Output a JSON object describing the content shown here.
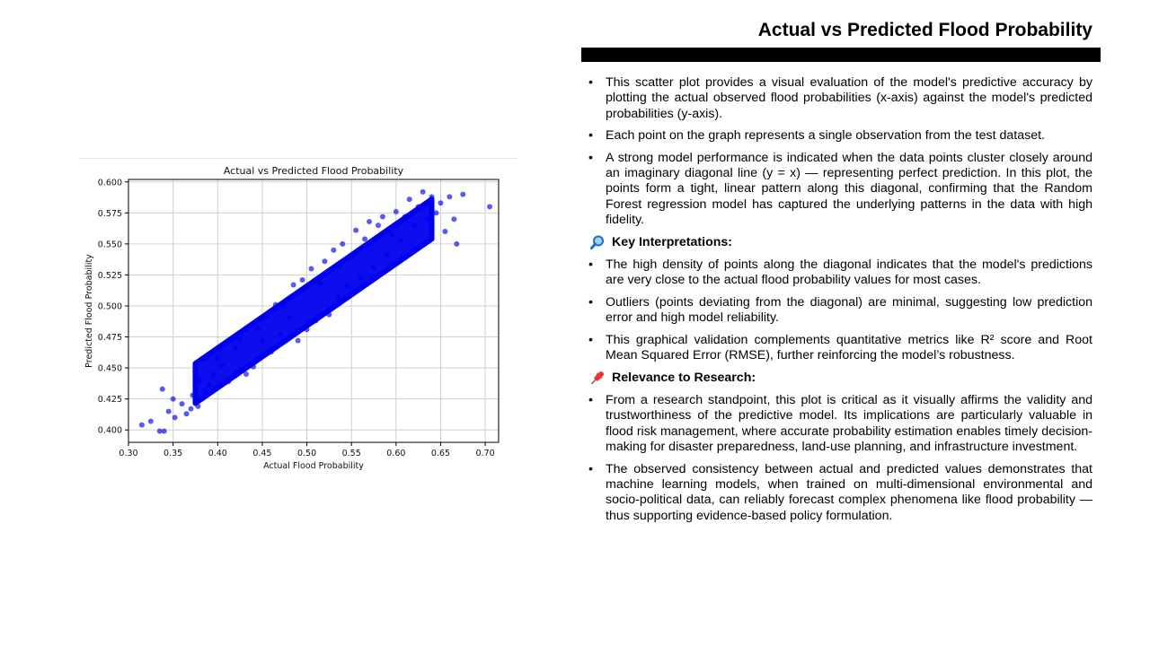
{
  "slide": {
    "title": "Actual vs Predicted Flood Probability"
  },
  "text": {
    "bullets_intro": [
      "This scatter plot provides a visual evaluation of the model's predictive accuracy by plotting the actual observed flood probabilities (x-axis) against the model's predicted probabilities (y-axis).",
      "Each point on the graph represents a single observation from the test dataset.",
      "A strong model performance is indicated when the data points cluster closely around an imaginary diagonal line (y = x) — representing perfect prediction. In this plot, the points form a tight, linear pattern along this diagonal, confirming that the Random Forest regression model has captured the underlying patterns in the data with high fidelity."
    ],
    "key_heading": "Key Interpretations:",
    "key_icon": "magnifier-icon",
    "bullets_key": [
      "The high density of points along the diagonal indicates that the model's predictions are very close to the actual flood probability values for most cases.",
      "Outliers (points deviating from the diagonal) are minimal, suggesting low prediction error and high model reliability.",
      "This graphical validation complements quantitative metrics like R² score and Root Mean Squared Error (RMSE), further reinforcing the model’s robustness."
    ],
    "research_heading": "Relevance to Research:",
    "research_icon": "pushpin-icon",
    "bullets_research": [
      "From a research standpoint, this plot is critical as it visually affirms the validity and trustworthiness of the predictive model. Its implications are particularly valuable in flood risk management, where accurate probability estimation enables timely decision-making for disaster preparedness, land-use planning, and infrastructure investment.",
      "The observed consistency between actual and predicted values demonstrates that machine learning models, when trained on multi-dimensional environmental and socio-political data, can reliably forecast complex phenomena like flood probability — thus supporting evidence-based policy formulation."
    ]
  },
  "chart_data": {
    "type": "scatter",
    "title": "Actual vs Predicted Flood Probability",
    "xlabel": "Actual Flood Probability",
    "ylabel": "Predicted Flood Probability",
    "xlim": [
      0.3,
      0.715
    ],
    "ylim": [
      0.39,
      0.602
    ],
    "xticks": [
      "0.30",
      "0.35",
      "0.40",
      "0.45",
      "0.50",
      "0.55",
      "0.60",
      "0.65",
      "0.70"
    ],
    "yticks": [
      "0.400",
      "0.425",
      "0.450",
      "0.475",
      "0.500",
      "0.525",
      "0.550",
      "0.575",
      "0.600"
    ],
    "grid": true,
    "point_color": "#0000ee",
    "point_opacity": 0.65,
    "trend": {
      "slope": 0.5,
      "intercept": 0.25
    },
    "dense_band": {
      "x_range": [
        0.375,
        0.64
      ],
      "y_half_width": 0.016
    },
    "points": [
      [
        0.315,
        0.404
      ],
      [
        0.325,
        0.407
      ],
      [
        0.335,
        0.399
      ],
      [
        0.34,
        0.399
      ],
      [
        0.338,
        0.433
      ],
      [
        0.345,
        0.415
      ],
      [
        0.35,
        0.425
      ],
      [
        0.352,
        0.41
      ],
      [
        0.36,
        0.421
      ],
      [
        0.365,
        0.413
      ],
      [
        0.37,
        0.417
      ],
      [
        0.372,
        0.428
      ],
      [
        0.378,
        0.419
      ],
      [
        0.38,
        0.44
      ],
      [
        0.385,
        0.432
      ],
      [
        0.39,
        0.436
      ],
      [
        0.395,
        0.445
      ],
      [
        0.4,
        0.458
      ],
      [
        0.405,
        0.452
      ],
      [
        0.412,
        0.439
      ],
      [
        0.42,
        0.466
      ],
      [
        0.425,
        0.474
      ],
      [
        0.432,
        0.445
      ],
      [
        0.44,
        0.451
      ],
      [
        0.445,
        0.482
      ],
      [
        0.45,
        0.472
      ],
      [
        0.455,
        0.493
      ],
      [
        0.46,
        0.463
      ],
      [
        0.465,
        0.501
      ],
      [
        0.47,
        0.477
      ],
      [
        0.475,
        0.5
      ],
      [
        0.48,
        0.49
      ],
      [
        0.485,
        0.517
      ],
      [
        0.49,
        0.472
      ],
      [
        0.495,
        0.521
      ],
      [
        0.5,
        0.481
      ],
      [
        0.505,
        0.53
      ],
      [
        0.51,
        0.488
      ],
      [
        0.515,
        0.518
      ],
      [
        0.52,
        0.536
      ],
      [
        0.525,
        0.493
      ],
      [
        0.53,
        0.545
      ],
      [
        0.535,
        0.507
      ],
      [
        0.54,
        0.55
      ],
      [
        0.545,
        0.516
      ],
      [
        0.55,
        0.539
      ],
      [
        0.555,
        0.561
      ],
      [
        0.56,
        0.523
      ],
      [
        0.565,
        0.554
      ],
      [
        0.57,
        0.568
      ],
      [
        0.575,
        0.531
      ],
      [
        0.58,
        0.565
      ],
      [
        0.585,
        0.572
      ],
      [
        0.59,
        0.541
      ],
      [
        0.595,
        0.558
      ],
      [
        0.6,
        0.576
      ],
      [
        0.605,
        0.553
      ],
      [
        0.61,
        0.572
      ],
      [
        0.615,
        0.586
      ],
      [
        0.62,
        0.565
      ],
      [
        0.625,
        0.58
      ],
      [
        0.63,
        0.592
      ],
      [
        0.635,
        0.57
      ],
      [
        0.64,
        0.588
      ],
      [
        0.645,
        0.575
      ],
      [
        0.65,
        0.583
      ],
      [
        0.655,
        0.56
      ],
      [
        0.66,
        0.588
      ],
      [
        0.665,
        0.57
      ],
      [
        0.668,
        0.55
      ],
      [
        0.675,
        0.59
      ],
      [
        0.705,
        0.58
      ]
    ]
  }
}
